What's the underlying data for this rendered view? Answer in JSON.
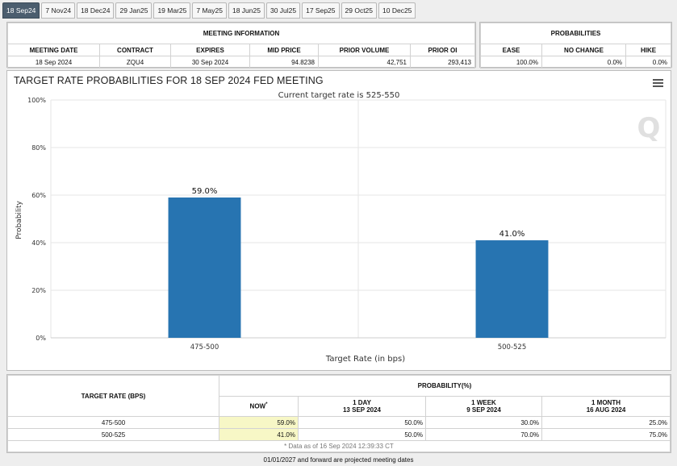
{
  "tabs": [
    "18 Sep24",
    "7 Nov24",
    "18 Dec24",
    "29 Jan25",
    "19 Mar25",
    "7 May25",
    "18 Jun25",
    "30 Jul25",
    "17 Sep25",
    "29 Oct25",
    "10 Dec25"
  ],
  "active_tab": 0,
  "meeting_info": {
    "title": "MEETING INFORMATION",
    "headers": [
      "MEETING DATE",
      "CONTRACT",
      "EXPIRES",
      "MID PRICE",
      "PRIOR VOLUME",
      "PRIOR OI"
    ],
    "values": [
      "18 Sep 2024",
      "ZQU4",
      "30 Sep 2024",
      "94.8238",
      "42,751",
      "293,413"
    ]
  },
  "probabilities": {
    "title": "PROBABILITIES",
    "headers": [
      "EASE",
      "NO CHANGE",
      "HIKE"
    ],
    "values": [
      "100.0%",
      "0.0%",
      "0.0%"
    ]
  },
  "chart_title": "TARGET RATE PROBABILITIES FOR 18 SEP 2024 FED MEETING",
  "watermark": "Q",
  "chart_data": {
    "type": "bar",
    "subtitle": "Current target rate is 525-550",
    "categories": [
      "475-500",
      "500-525"
    ],
    "values": [
      59.0,
      41.0
    ],
    "value_labels": [
      "59.0%",
      "41.0%"
    ],
    "xlabel": "Target Rate (in bps)",
    "ylabel": "Probability",
    "ylim": [
      0,
      100
    ],
    "yticks": [
      "0%",
      "20%",
      "40%",
      "60%",
      "80%",
      "100%"
    ],
    "bar_color": "#2774b1",
    "grid": true
  },
  "rate_table": {
    "target_header": "TARGET RATE (BPS)",
    "prob_header": "PROBABILITY(%)",
    "columns": [
      {
        "line1": "NOW",
        "line2": ""
      },
      {
        "line1": "1 DAY",
        "line2": "13 SEP 2024"
      },
      {
        "line1": "1 WEEK",
        "line2": "9 SEP 2024"
      },
      {
        "line1": "1 MONTH",
        "line2": "16 AUG 2024"
      }
    ],
    "now_marker": "*",
    "rows": [
      {
        "rate": "475-500",
        "values": [
          "59.0%",
          "50.0%",
          "30.0%",
          "25.0%"
        ]
      },
      {
        "rate": "500-525",
        "values": [
          "41.0%",
          "50.0%",
          "70.0%",
          "75.0%"
        ]
      }
    ],
    "footnote": "* Data as of 16 Sep 2024 12:39:33 CT"
  },
  "projected_note": "01/01/2027 and forward are projected meeting dates"
}
